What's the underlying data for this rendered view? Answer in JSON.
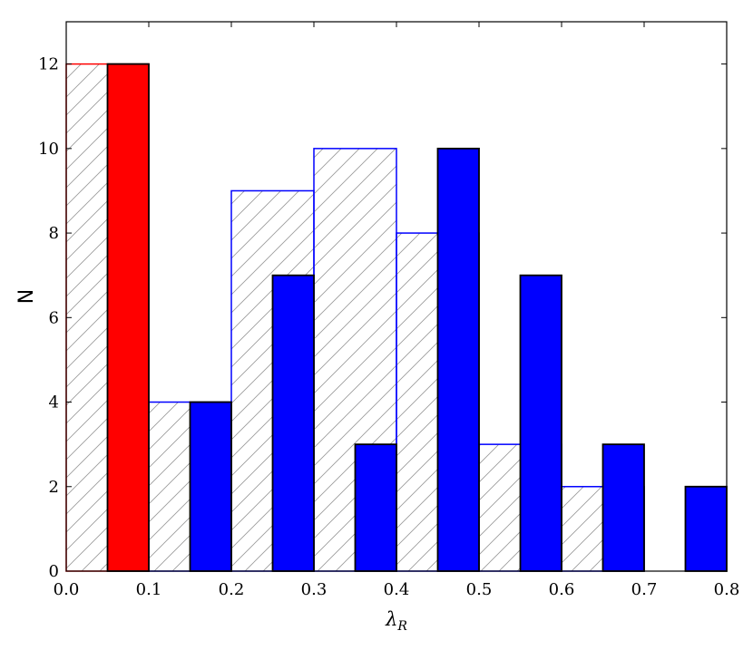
{
  "chart_data": {
    "type": "bar",
    "title": "",
    "xlabel_main": "λ",
    "xlabel_sub": "R",
    "ylabel": "N",
    "xlim": [
      0.0,
      0.8
    ],
    "ylim": [
      0,
      13
    ],
    "bin_width": 0.05,
    "xticks": [
      "0.0",
      "0.1",
      "0.2",
      "0.3",
      "0.4",
      "0.5",
      "0.6",
      "0.7",
      "0.8"
    ],
    "yticks": [
      "0",
      "2",
      "4",
      "6",
      "8",
      "10",
      "12"
    ],
    "grid": false,
    "colors": {
      "hatched_edge_first": "#ff0000",
      "hatched_edge": "#0000ff",
      "hatch_line": "#999999",
      "fast_rotator_bar": "#0000ff",
      "slow_rotator_bar": "#ff0000",
      "solid_edge": "#000000"
    },
    "series": [
      {
        "style": "hatched",
        "bars": [
          {
            "x0": 0.0,
            "value": 12
          },
          {
            "x0": 0.1,
            "value": 4
          },
          {
            "x0": 0.2,
            "value": 9
          },
          {
            "x0": 0.3,
            "value": 10
          },
          {
            "x0": 0.4,
            "value": 8
          },
          {
            "x0": 0.5,
            "value": 3
          },
          {
            "x0": 0.6,
            "value": 2
          }
        ]
      },
      {
        "style": "solid",
        "bars": [
          {
            "x0": 0.05,
            "value": 12,
            "color": "#ff0000"
          },
          {
            "x0": 0.15,
            "value": 4,
            "color": "#0000ff"
          },
          {
            "x0": 0.25,
            "value": 7,
            "color": "#0000ff"
          },
          {
            "x0": 0.35,
            "value": 3,
            "color": "#0000ff"
          },
          {
            "x0": 0.45,
            "value": 10,
            "color": "#0000ff"
          },
          {
            "x0": 0.55,
            "value": 7,
            "color": "#0000ff"
          },
          {
            "x0": 0.65,
            "value": 3,
            "color": "#0000ff"
          },
          {
            "x0": 0.75,
            "value": 2,
            "color": "#0000ff"
          }
        ]
      }
    ]
  }
}
